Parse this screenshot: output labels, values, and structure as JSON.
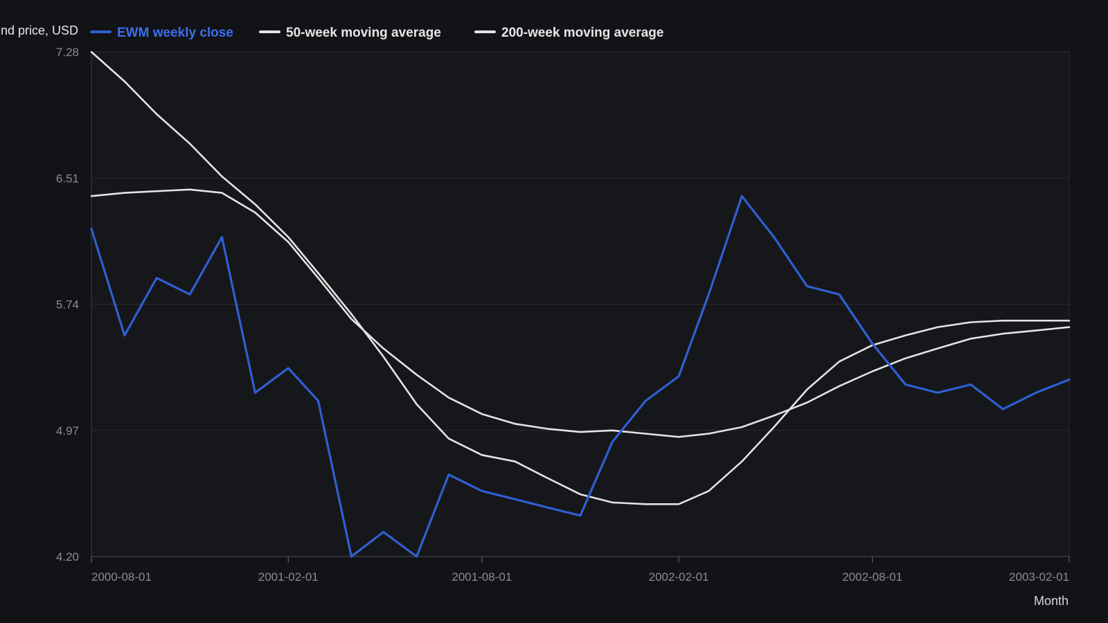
{
  "chart_data": {
    "type": "line",
    "ylabel": "Fund price, USD",
    "xlabel": "Month",
    "x_ticks": [
      "2000-08-01",
      "2001-02-01",
      "2001-08-01",
      "2002-02-01",
      "2002-08-01",
      "2003-02-01"
    ],
    "y_ticks": [
      "4.20",
      "4.97",
      "5.74",
      "6.51",
      "7.28"
    ],
    "ylim": [
      4.2,
      7.28
    ],
    "xlim": [
      "2000-08-01",
      "2003-02-01"
    ],
    "grid": "horizontal",
    "legend_position": "top-left",
    "series": [
      {
        "name": "EWM weekly close",
        "color": "#2f5fd4",
        "points": [
          [
            "2000-08-01",
            6.2
          ],
          [
            "2000-09-01",
            5.55
          ],
          [
            "2000-10-01",
            5.9
          ],
          [
            "2000-11-01",
            5.8
          ],
          [
            "2000-12-01",
            6.15
          ],
          [
            "2001-01-01",
            5.2
          ],
          [
            "2001-02-01",
            5.35
          ],
          [
            "2001-03-01",
            5.15
          ],
          [
            "2001-04-01",
            4.2
          ],
          [
            "2001-05-01",
            4.35
          ],
          [
            "2001-06-01",
            4.2
          ],
          [
            "2001-07-01",
            4.7
          ],
          [
            "2001-08-01",
            4.6
          ],
          [
            "2001-09-01",
            4.55
          ],
          [
            "2001-10-01",
            4.5
          ],
          [
            "2001-11-01",
            4.45
          ],
          [
            "2001-12-01",
            4.9
          ],
          [
            "2002-01-01",
            5.15
          ],
          [
            "2002-02-01",
            5.3
          ],
          [
            "2002-03-01",
            5.8
          ],
          [
            "2002-04-01",
            6.4
          ],
          [
            "2002-05-01",
            6.15
          ],
          [
            "2002-06-01",
            5.85
          ],
          [
            "2002-07-01",
            5.8
          ],
          [
            "2002-08-01",
            5.5
          ],
          [
            "2002-09-01",
            5.25
          ],
          [
            "2002-10-01",
            5.2
          ],
          [
            "2002-11-01",
            5.25
          ],
          [
            "2002-12-01",
            5.1
          ],
          [
            "2003-01-01",
            5.2
          ],
          [
            "2003-02-01",
            5.28
          ]
        ]
      },
      {
        "name": "50-week moving average",
        "color": "#e4e4e4",
        "points": [
          [
            "2000-08-01",
            7.28
          ],
          [
            "2000-09-01",
            7.1
          ],
          [
            "2000-10-01",
            6.9
          ],
          [
            "2000-11-01",
            6.72
          ],
          [
            "2000-12-01",
            6.52
          ],
          [
            "2001-01-01",
            6.35
          ],
          [
            "2001-02-01",
            6.15
          ],
          [
            "2001-03-01",
            5.93
          ],
          [
            "2001-04-01",
            5.68
          ],
          [
            "2001-05-01",
            5.42
          ],
          [
            "2001-06-01",
            5.13
          ],
          [
            "2001-07-01",
            4.92
          ],
          [
            "2001-08-01",
            4.82
          ],
          [
            "2001-09-01",
            4.78
          ],
          [
            "2001-10-01",
            4.68
          ],
          [
            "2001-11-01",
            4.58
          ],
          [
            "2001-12-01",
            4.53
          ],
          [
            "2002-01-01",
            4.52
          ],
          [
            "2002-02-01",
            4.52
          ],
          [
            "2002-03-01",
            4.6
          ],
          [
            "2002-04-01",
            4.78
          ],
          [
            "2002-05-01",
            4.99
          ],
          [
            "2002-06-01",
            5.22
          ],
          [
            "2002-07-01",
            5.39
          ],
          [
            "2002-08-01",
            5.49
          ],
          [
            "2002-09-01",
            5.55
          ],
          [
            "2002-10-01",
            5.6
          ],
          [
            "2002-11-01",
            5.63
          ],
          [
            "2002-12-01",
            5.64
          ],
          [
            "2003-01-01",
            5.64
          ],
          [
            "2003-02-01",
            5.64
          ]
        ]
      },
      {
        "name": "200-week moving average",
        "color": "#e4e4e4",
        "points": [
          [
            "2000-08-01",
            6.4
          ],
          [
            "2000-09-01",
            6.42
          ],
          [
            "2000-10-01",
            6.43
          ],
          [
            "2000-11-01",
            6.44
          ],
          [
            "2000-12-01",
            6.42
          ],
          [
            "2001-01-01",
            6.3
          ],
          [
            "2001-02-01",
            6.12
          ],
          [
            "2001-03-01",
            5.9
          ],
          [
            "2001-04-01",
            5.65
          ],
          [
            "2001-05-01",
            5.47
          ],
          [
            "2001-06-01",
            5.31
          ],
          [
            "2001-07-01",
            5.17
          ],
          [
            "2001-08-01",
            5.07
          ],
          [
            "2001-09-01",
            5.01
          ],
          [
            "2001-10-01",
            4.98
          ],
          [
            "2001-11-01",
            4.96
          ],
          [
            "2001-12-01",
            4.97
          ],
          [
            "2002-01-01",
            4.95
          ],
          [
            "2002-02-01",
            4.93
          ],
          [
            "2002-03-01",
            4.95
          ],
          [
            "2002-04-01",
            4.99
          ],
          [
            "2002-05-01",
            5.06
          ],
          [
            "2002-06-01",
            5.14
          ],
          [
            "2002-07-01",
            5.24
          ],
          [
            "2002-08-01",
            5.33
          ],
          [
            "2002-09-01",
            5.41
          ],
          [
            "2002-10-01",
            5.47
          ],
          [
            "2002-11-01",
            5.53
          ],
          [
            "2002-12-01",
            5.56
          ],
          [
            "2003-01-01",
            5.58
          ],
          [
            "2003-02-01",
            5.6
          ]
        ]
      }
    ]
  }
}
